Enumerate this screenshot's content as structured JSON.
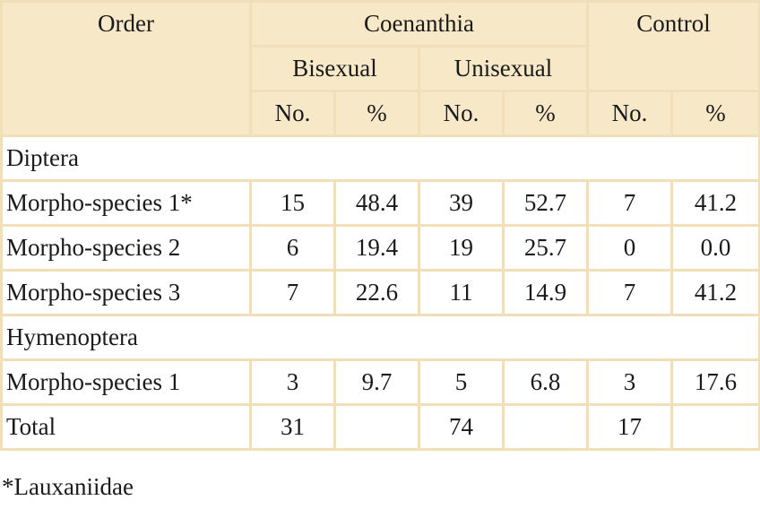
{
  "table": {
    "header": {
      "order": "Order",
      "coenanthia": "Coenanthia",
      "control": "Control",
      "bisexual": "Bisexual",
      "unisexual": "Unisexual",
      "no": "No.",
      "pct": "%"
    },
    "groups": [
      {
        "name": "Diptera",
        "rows": [
          {
            "label": "Morpho-species 1*",
            "values": [
              "15",
              "48.4",
              "39",
              "52.7",
              "7",
              "41.2"
            ]
          },
          {
            "label": "Morpho-species 2",
            "values": [
              "6",
              "19.4",
              "19",
              "25.7",
              "0",
              "0.0"
            ]
          },
          {
            "label": "Morpho-species 3",
            "values": [
              "7",
              "22.6",
              "11",
              "14.9",
              "7",
              "41.2"
            ]
          }
        ]
      },
      {
        "name": "Hymenoptera",
        "rows": [
          {
            "label": "Morpho-species 1",
            "values": [
              "3",
              "9.7",
              "5",
              "6.8",
              "3",
              "17.6"
            ]
          }
        ]
      }
    ],
    "total": {
      "label": "Total",
      "values": [
        "31",
        "",
        "74",
        "",
        "17",
        ""
      ]
    }
  },
  "footnote": "*Lauxaniidae"
}
